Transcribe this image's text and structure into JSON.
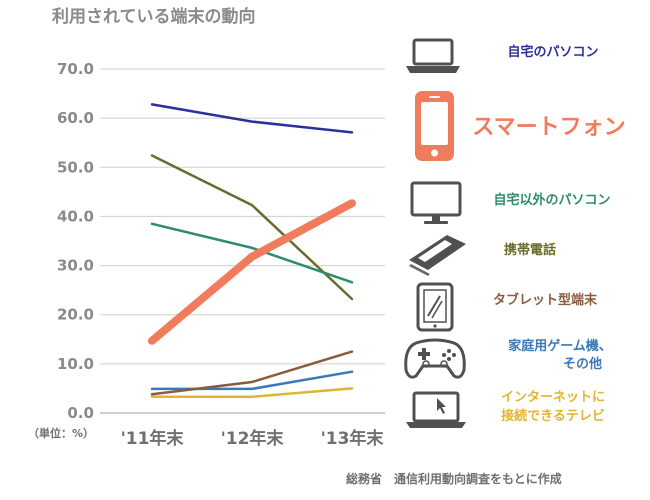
{
  "chart_data": {
    "type": "line",
    "title": "利用されている端末の動向",
    "unit_label": "（単位：%）",
    "source": "総務省　通信利用動向調査をもとに作成",
    "categories": [
      "'11年末",
      "'12年末",
      "'13年末"
    ],
    "ylim": [
      0,
      70
    ],
    "yticks": [
      "0.0",
      "10.0",
      "20.0",
      "30.0",
      "40.0",
      "50.0",
      "60.0",
      "70.0"
    ],
    "grid": true,
    "legend_position": "right",
    "series": [
      {
        "name": "自宅のパソコン",
        "color": "#2d2f9b",
        "width": 2.5,
        "values": [
          62.8,
          59.3,
          57.1
        ],
        "icon": "laptop-icon",
        "label_lines": [
          "自宅のパソコン"
        ]
      },
      {
        "name": "スマートフォン",
        "color": "#f07c5d",
        "width": 8,
        "values": [
          14.7,
          31.8,
          42.7
        ],
        "icon": "smartphone-icon",
        "label_lines": [
          "スマートフォン"
        ]
      },
      {
        "name": "自宅以外のパソコン",
        "color": "#2e8c6c",
        "width": 2.5,
        "values": [
          38.5,
          33.6,
          26.6
        ],
        "icon": "monitor-icon",
        "label_lines": [
          "自宅以外のパソコン"
        ]
      },
      {
        "name": "携帯電話",
        "color": "#6b6b2c",
        "width": 2.5,
        "values": [
          52.4,
          42.3,
          23.2
        ],
        "icon": "mobile-phone-icon",
        "label_lines": [
          "携帯電話"
        ]
      },
      {
        "name": "タブレット型端末",
        "color": "#8a5c3c",
        "width": 2.5,
        "values": [
          3.8,
          6.3,
          12.5
        ],
        "icon": "tablet-icon",
        "label_lines": [
          "タブレット型端末"
        ]
      },
      {
        "name": "家庭用ゲーム機、その他",
        "color": "#3a78b8",
        "width": 2.5,
        "values": [
          4.9,
          4.9,
          8.4
        ],
        "icon": "game-controller-icon",
        "label_lines": [
          "家庭用ゲーム機、",
          "その他"
        ]
      },
      {
        "name": "インターネットに接続できるテレビ",
        "color": "#e0b531",
        "width": 2.5,
        "values": [
          3.3,
          3.3,
          5.0
        ],
        "icon": "tv-icon",
        "label_lines": [
          "インターネットに",
          "接続できるテレビ"
        ]
      }
    ]
  }
}
